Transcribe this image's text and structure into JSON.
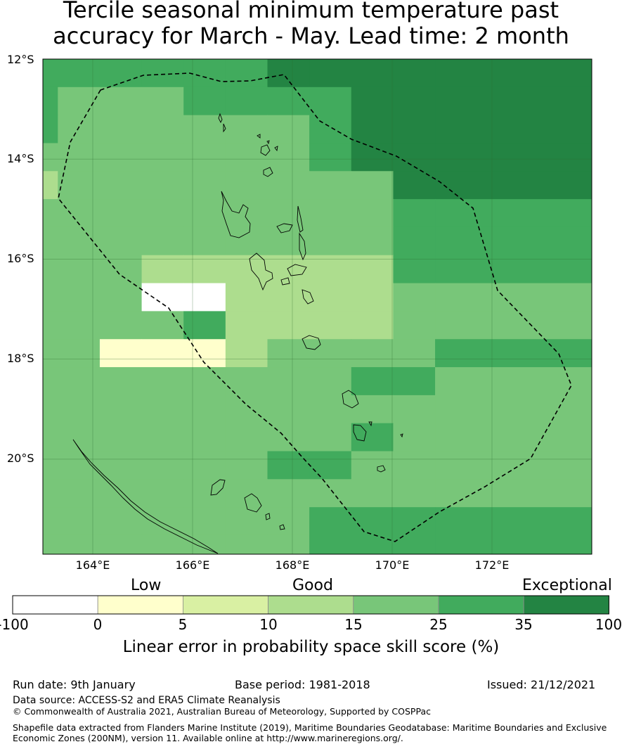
{
  "title_line1": "Tercile seasonal minimum temperature past",
  "title_line2": "accuracy for March - May. Lead time: 2 month",
  "lat_labels": [
    "12°S",
    "14°S",
    "16°S",
    "18°S",
    "20°S"
  ],
  "lon_labels": [
    "164°E",
    "166°E",
    "168°E",
    "170°E",
    "172°E"
  ],
  "colorbar": {
    "words": [
      "Low",
      "Good",
      "Exceptional"
    ],
    "ticks": [
      "-100",
      "0",
      "5",
      "10",
      "15",
      "25",
      "35",
      "100"
    ],
    "label": "Linear error in probability space skill score (%)",
    "colors": [
      "#ffffff",
      "#ffffcc",
      "#d9f0a3",
      "#addd8e",
      "#78c679",
      "#41ab5d",
      "#238443"
    ]
  },
  "footer": {
    "run_date": "Run date: 9th January",
    "base_period": "Base period: 1981-2018",
    "issued": "Issued: 21/12/2021",
    "data_source": "Data source: ACCESS-S2 and ERA5 Climate Reanalysis",
    "copyright": "© Commonwealth of Australia 2021, Australian Bureau of Meteorology, Supported by COSPPac",
    "shapefile_line1": "Shapefile data extracted from Flanders Marine Institute (2019), Maritime Boundaries Geodatabase: Maritime Boundaries and Exclusive",
    "shapefile_line2": "Economic Zones (200NM), version 11. Available online at http://www.marineregions.org/."
  },
  "grid": {
    "lon_min": 163.0,
    "lon_max": 174.0,
    "lat_min": -21.9,
    "lat_max": -12.0,
    "cell_lon": 0.84,
    "cell_lat": 0.56,
    "rows": [
      "55555566666",
      "54445555666",
      "54444445666",
      "44444445666",
      "34444444466",
      "44444444455",
      "44444444455",
      "44433333355",
      "44400333344",
      "44445333344",
      "44111344445",
      "44444444554",
      "44444444444",
      "44444444544",
      "44444455444",
      "44444444444",
      "44444445555",
      "44444445555",
      "44444455555",
      "44444555555"
    ]
  }
}
